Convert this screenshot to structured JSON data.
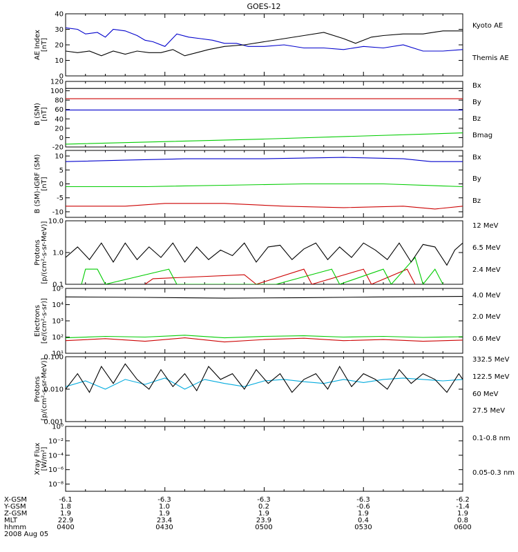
{
  "title": "GOES-12",
  "colors": {
    "black": "#000000",
    "blue": "#0000cc",
    "green": "#00cc00",
    "red": "#cc0000",
    "cyan": "#00aadd",
    "yellow": "#e6e600"
  },
  "chart_data": [
    {
      "type": "line",
      "ylabel": [
        "AE Index",
        "[nT]"
      ],
      "ylim": [
        0,
        40
      ],
      "yticks": [
        "0",
        "10",
        "20",
        "30",
        "40"
      ],
      "ytick_values": [
        0,
        10,
        20,
        30,
        40
      ],
      "series": [
        {
          "name": "Kyoto AE",
          "color": "blue",
          "x": [
            0,
            3,
            5,
            8,
            10,
            12,
            15,
            18,
            20,
            22,
            25,
            28,
            31,
            34,
            37,
            40,
            43,
            46,
            50,
            55,
            60,
            65,
            70,
            75,
            80,
            85,
            90,
            95,
            100
          ],
          "values": [
            31,
            30,
            27,
            28,
            25,
            30,
            29,
            26,
            23,
            22,
            19,
            27,
            25,
            24,
            23,
            21,
            21,
            19,
            19,
            20,
            18,
            18,
            17,
            19,
            18,
            20,
            16,
            16,
            17
          ]
        },
        {
          "name": "Themis AE",
          "color": "black",
          "x": [
            0,
            3,
            6,
            9,
            12,
            15,
            18,
            21,
            24,
            27,
            30,
            33,
            36,
            40,
            45,
            50,
            55,
            60,
            65,
            70,
            73,
            77,
            80,
            85,
            90,
            95,
            100
          ],
          "values": [
            16,
            15,
            16,
            13,
            16,
            14,
            16,
            15,
            15,
            17,
            13,
            15,
            17,
            19,
            20,
            22,
            24,
            26,
            28,
            24,
            21,
            25,
            26,
            27,
            27,
            29,
            29
          ]
        }
      ]
    },
    {
      "type": "line",
      "ylabel": [
        "B (SM)",
        "[nT]"
      ],
      "ylim": [
        -20,
        120
      ],
      "yticks": [
        "-20",
        "0",
        "20",
        "40",
        "60",
        "80",
        "100",
        "120"
      ],
      "ytick_values": [
        -20,
        0,
        20,
        40,
        60,
        80,
        100,
        120
      ],
      "series": [
        {
          "name": "Bx",
          "color": "blue",
          "x": [
            0,
            100
          ],
          "values": [
            59,
            59
          ]
        },
        {
          "name": "By",
          "color": "green",
          "x": [
            0,
            50,
            100
          ],
          "values": [
            -14,
            -3,
            10
          ]
        },
        {
          "name": "Bz",
          "color": "red",
          "x": [
            0,
            100
          ],
          "values": [
            83,
            83
          ]
        },
        {
          "name": "Bmag",
          "color": "black",
          "x": [
            0,
            100
          ],
          "values": [
            105,
            105
          ]
        }
      ]
    },
    {
      "type": "line",
      "ylabel": [
        "B (SM)-IGRF (SM)",
        "[nT]"
      ],
      "ylim": [
        -12,
        12
      ],
      "yticks": [
        "-10",
        "-5",
        "0",
        "5",
        "10"
      ],
      "ytick_values": [
        -10,
        -5,
        0,
        5,
        10
      ],
      "series": [
        {
          "name": "Bx",
          "color": "blue",
          "x": [
            0,
            15,
            30,
            50,
            70,
            85,
            92,
            100
          ],
          "values": [
            8,
            8.5,
            9,
            9,
            9.5,
            9,
            8,
            8
          ]
        },
        {
          "name": "By",
          "color": "green",
          "x": [
            0,
            20,
            40,
            60,
            80,
            100
          ],
          "values": [
            -1,
            -1,
            -0.5,
            0,
            0,
            -1
          ]
        },
        {
          "name": "Bz",
          "color": "red",
          "x": [
            0,
            15,
            25,
            40,
            55,
            70,
            85,
            93,
            100
          ],
          "values": [
            -8,
            -8,
            -7,
            -7,
            -8,
            -8.5,
            -8,
            -9,
            -8
          ]
        }
      ]
    },
    {
      "type": "line",
      "log": true,
      "ylabel": [
        "Protons",
        "[p/(cm²-s-sr-MeV)]"
      ],
      "ylim": [
        0.1,
        10
      ],
      "yticks": [
        "0.1",
        "1.0",
        "10.0"
      ],
      "ytick_values": [
        0.1,
        1,
        10
      ],
      "series": [
        {
          "name": "12 MeV",
          "color": "red",
          "x": [
            20,
            22,
            45,
            48,
            60,
            62,
            75,
            77,
            86,
            88
          ],
          "values": [
            0.1,
            0.15,
            0.2,
            0.1,
            0.3,
            0.1,
            0.3,
            0.1,
            0.3,
            0.1
          ]
        },
        {
          "name": "6.5 MeV",
          "color": "green",
          "x": [
            4,
            5,
            8,
            10,
            26,
            28,
            50,
            53,
            67,
            69,
            80,
            82,
            88,
            90,
            93,
            95
          ],
          "values": [
            0.1,
            0.3,
            0.3,
            0.1,
            0.3,
            0.1,
            0.1,
            0.1,
            0.3,
            0.1,
            0.3,
            0.1,
            0.7,
            0.1,
            0.3,
            0.1
          ]
        },
        {
          "name": "2.4 MeV",
          "color": "black",
          "x": [
            0,
            3,
            6,
            9,
            12,
            15,
            18,
            21,
            24,
            27,
            30,
            33,
            36,
            39,
            42,
            45,
            48,
            51,
            54,
            57,
            60,
            63,
            66,
            69,
            72,
            75,
            78,
            81,
            84,
            87,
            90,
            93,
            96,
            98,
            100
          ],
          "values": [
            0.7,
            1.5,
            0.6,
            2,
            0.5,
            2,
            0.6,
            1.5,
            0.7,
            2,
            0.5,
            1.5,
            0.6,
            1.2,
            0.8,
            2,
            0.5,
            1.5,
            1.7,
            0.6,
            1.3,
            2,
            0.6,
            1.5,
            0.7,
            2,
            1.2,
            0.6,
            2,
            0.5,
            1.8,
            1.5,
            0.4,
            1.2,
            2
          ]
        }
      ]
    },
    {
      "type": "line",
      "log": true,
      "ylabel": [
        "Electrons",
        "[e/(cm²-s-sr)]"
      ],
      "ylim": [
        10,
        100000
      ],
      "yticks": [
        "10¹",
        "10²",
        "10³",
        "10⁴",
        "10⁵"
      ],
      "ytick_values": [
        10,
        100,
        1000,
        10000,
        100000
      ],
      "series": [
        {
          "name": "4.0 MeV",
          "color": "red",
          "x": [
            0,
            10,
            20,
            30,
            40,
            50,
            60,
            70,
            80,
            90,
            100
          ],
          "values": [
            60,
            80,
            55,
            90,
            50,
            70,
            85,
            60,
            70,
            55,
            65
          ]
        },
        {
          "name": "2.0 MeV",
          "color": "green",
          "x": [
            0,
            10,
            20,
            30,
            40,
            50,
            60,
            70,
            80,
            90,
            100
          ],
          "values": [
            90,
            110,
            100,
            130,
            90,
            110,
            120,
            100,
            110,
            95,
            105
          ]
        },
        {
          "name": "0.6 MeV",
          "color": "black",
          "x": [
            0,
            20,
            40,
            60,
            80,
            100
          ],
          "values": [
            30000,
            28000,
            25000,
            27000,
            30000,
            32000
          ]
        }
      ]
    },
    {
      "type": "line",
      "log": true,
      "ylabel": [
        "Protons",
        "[p/(cm²-s-sr-MeV)]"
      ],
      "ylim": [
        0.001,
        0.1
      ],
      "yticks": [
        "0.001",
        "0.010",
        "0.100"
      ],
      "ytick_values": [
        0.001,
        0.01,
        0.1
      ],
      "series": [
        {
          "name": "332.5 MeV",
          "color": "red",
          "x": [],
          "values": []
        },
        {
          "name": "122.5 MeV",
          "color": "yellow",
          "x": [],
          "values": []
        },
        {
          "name": "60 MeV",
          "color": "cyan",
          "x": [
            0,
            5,
            10,
            15,
            20,
            25,
            30,
            35,
            40,
            45,
            50,
            55,
            60,
            65,
            70,
            75,
            80,
            85,
            90,
            95,
            100
          ],
          "values": [
            0.012,
            0.018,
            0.01,
            0.02,
            0.014,
            0.022,
            0.01,
            0.02,
            0.015,
            0.012,
            0.018,
            0.02,
            0.017,
            0.015,
            0.02,
            0.016,
            0.02,
            0.022,
            0.02,
            0.018,
            0.02
          ]
        },
        {
          "name": "27.5 MeV",
          "color": "black",
          "x": [
            0,
            3,
            6,
            9,
            12,
            15,
            18,
            21,
            24,
            27,
            30,
            33,
            36,
            39,
            42,
            45,
            48,
            51,
            54,
            57,
            60,
            63,
            66,
            69,
            72,
            75,
            78,
            81,
            84,
            87,
            90,
            93,
            96,
            99,
            100
          ],
          "values": [
            0.01,
            0.03,
            0.008,
            0.05,
            0.015,
            0.06,
            0.02,
            0.01,
            0.04,
            0.012,
            0.03,
            0.009,
            0.05,
            0.02,
            0.03,
            0.01,
            0.04,
            0.015,
            0.03,
            0.008,
            0.02,
            0.03,
            0.01,
            0.05,
            0.012,
            0.03,
            0.02,
            0.01,
            0.04,
            0.015,
            0.03,
            0.02,
            0.008,
            0.03,
            0.02
          ]
        }
      ]
    },
    {
      "type": "line",
      "log": true,
      "ylabel": [
        "Xray Flux",
        "[W/m²]"
      ],
      "ylim": [
        1e-09,
        1
      ],
      "yticks": [
        "10⁻⁸",
        "10⁻⁶",
        "10⁻⁴",
        "10⁻²",
        "10⁰"
      ],
      "ytick_values": [
        1e-08,
        1e-06,
        0.0001,
        0.01,
        1
      ],
      "series": [
        {
          "name": "0.1-0.8 nm",
          "color": "red",
          "x": [],
          "values": []
        },
        {
          "name": "0.05-0.3 nm",
          "color": "blue",
          "x": [],
          "values": []
        }
      ]
    }
  ],
  "footer": {
    "rows": [
      {
        "label": "X-GSM",
        "values": [
          "-6.1",
          "-6.3",
          "-6.3",
          "-6.3",
          "-6.2"
        ]
      },
      {
        "label": "Y-GSM",
        "values": [
          "1.8",
          "1.0",
          "0.2",
          "-0.6",
          "-1.4"
        ]
      },
      {
        "label": "Z-GSM",
        "values": [
          "1.9",
          "1.9",
          "1.9",
          "1.9",
          "1.9"
        ]
      },
      {
        "label": "MLT",
        "values": [
          "22.9",
          "23.4",
          "23.9",
          "0.4",
          "0.8"
        ]
      },
      {
        "label": "hhmm",
        "values": [
          "0400",
          "0430",
          "0500",
          "0530",
          "0600"
        ]
      }
    ],
    "date": "2008 Aug 05"
  }
}
